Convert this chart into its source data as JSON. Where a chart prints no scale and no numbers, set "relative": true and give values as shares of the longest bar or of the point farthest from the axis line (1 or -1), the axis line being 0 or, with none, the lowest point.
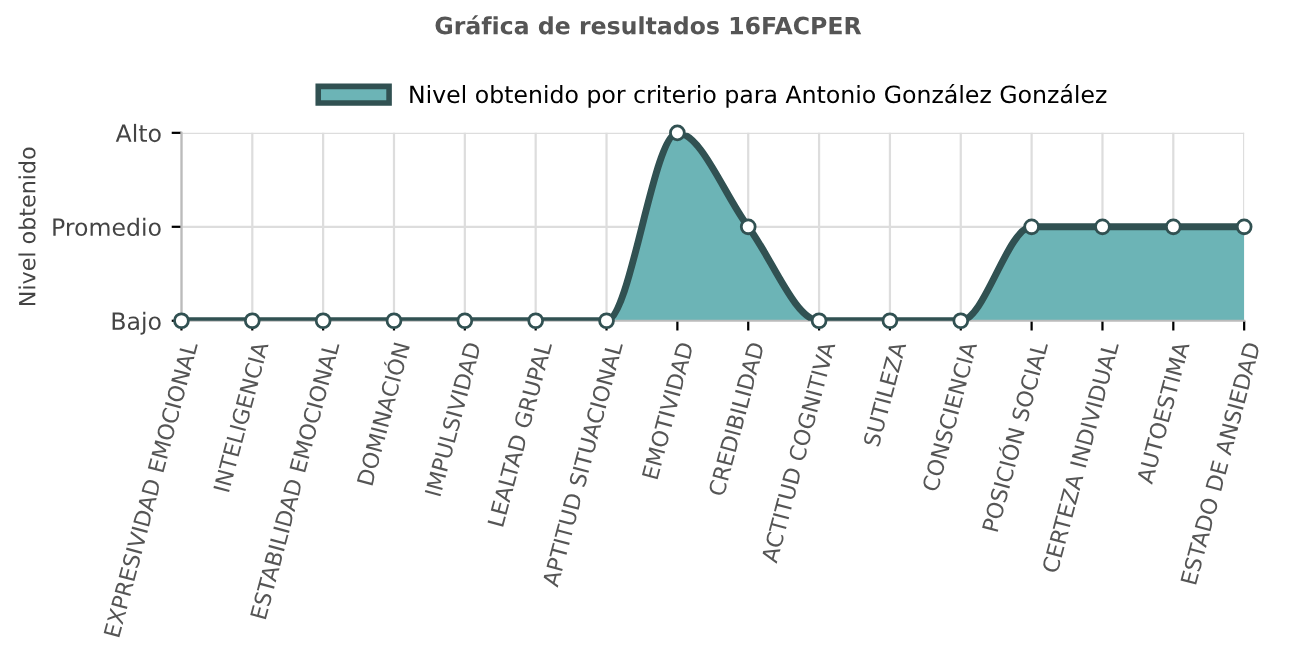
{
  "chart_data": {
    "type": "area",
    "title": "Gráfica de resultados 16FACPER",
    "ylabel": "Nivel obtenido",
    "categories": [
      "EXPRESIVIDAD EMOCIONAL",
      "INTELIGENCIA",
      "ESTABILIDAD EMOCIONAL",
      "DOMINACIÓN",
      "IMPULSIVIDAD",
      "LEALTAD GRUPAL",
      "APTITUD SITUACIONAL",
      "EMOTIVIDAD",
      "CREDIBILIDAD",
      "ACTITUD COGNITIVA",
      "SUTILEZA",
      "CONSCIENCIA",
      "POSICIÓN SOCIAL",
      "CERTEZA INDIVIDUAL",
      "AUTOESTIMA",
      "ESTADO DE ANSIEDAD"
    ],
    "series": [
      {
        "name": "Nivel obtenido por criterio para Antonio González González",
        "color": "#6cb4b6",
        "values": [
          0,
          0,
          0,
          0,
          0,
          0,
          0,
          1,
          0.5,
          0,
          0,
          0,
          0.5,
          0.5,
          0.5,
          0.5
        ]
      }
    ],
    "relative": true,
    "y_categories": [
      "Alto",
      "Promedio",
      "Bajo"
    ],
    "grid": true,
    "legend": "top",
    "marker": "circle"
  }
}
